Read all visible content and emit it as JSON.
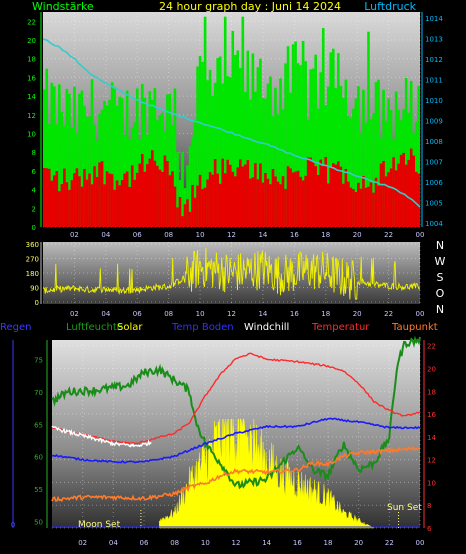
{
  "title": "24 hour graph day : Juni 14 2024",
  "colors": {
    "background": "#000000",
    "wind_gust": "#00e600",
    "wind_avg": "#e60000",
    "pressure": "#33cccc",
    "direction": "#f2f200",
    "rain": "#2222ff",
    "humidity": "#1a8c1a",
    "solar": "#ffff00",
    "temp_soil": "#1a1aff",
    "windchill": "#ffffff",
    "temperature": "#ff2a2a",
    "dewpoint": "#ff7a2a",
    "axis_left": "#00ff00",
    "axis_right": "#00bcff"
  },
  "chart_data": [
    {
      "type": "bar",
      "name_left": "Windstärke",
      "name_right": "Luftdruck",
      "x_ticks": [
        "02",
        "04",
        "06",
        "08",
        "10",
        "12",
        "14",
        "16",
        "18",
        "20",
        "22",
        "00"
      ],
      "y_left_ticks": [
        "0",
        "2",
        "4",
        "6",
        "8",
        "10",
        "12",
        "14",
        "16",
        "18",
        "20",
        "22"
      ],
      "y_left_range": [
        0,
        23
      ],
      "y_right_ticks": [
        "1004",
        "1005",
        "1006",
        "1007",
        "1008",
        "1009",
        "1010",
        "1011",
        "1012",
        "1013",
        "1014"
      ],
      "y_right_range": [
        1003.8,
        1014.3
      ],
      "series": [
        {
          "name": "gust",
          "values_by_hour": [
            13,
            12,
            11,
            12,
            12,
            11,
            12,
            13,
            12,
            5,
            16,
            14,
            17,
            15,
            15,
            14,
            16,
            14,
            15,
            15,
            13,
            12,
            12,
            12
          ]
        },
        {
          "name": "average",
          "values_by_hour": [
            6,
            5,
            5,
            6,
            6,
            5,
            6,
            7,
            6,
            1,
            5,
            6,
            6,
            6,
            6,
            5,
            6,
            6,
            6,
            6,
            5,
            5,
            6,
            7
          ]
        },
        {
          "name": "pressure",
          "x": [
            0,
            1,
            2,
            3,
            4,
            6,
            8,
            10,
            12,
            14,
            16,
            18,
            20,
            21,
            22,
            23,
            24
          ],
          "y": [
            1013.0,
            1012.6,
            1012.0,
            1011.3,
            1010.8,
            1010.0,
            1009.4,
            1008.9,
            1008.4,
            1007.9,
            1007.3,
            1006.8,
            1006.3,
            1006.0,
            1005.8,
            1005.4,
            1004.8
          ]
        }
      ]
    },
    {
      "type": "scatter",
      "x_ticks": [
        "02",
        "04",
        "06",
        "08",
        "10",
        "12",
        "14",
        "16",
        "18",
        "20",
        "22",
        "00"
      ],
      "y_ticks": [
        "0",
        "90",
        "180",
        "270",
        "360"
      ],
      "y_range": [
        0,
        360
      ],
      "compass": [
        "N",
        "W",
        "S",
        "O",
        "N"
      ],
      "direction_by_hour": [
        70,
        80,
        85,
        75,
        80,
        70,
        75,
        90,
        95,
        150,
        220,
        200,
        180,
        190,
        210,
        170,
        180,
        200,
        190,
        150,
        130,
        110,
        100,
        95
      ]
    },
    {
      "type": "line",
      "legend": [
        "Regen",
        "Luftfeuchte",
        "Solar",
        "Temp Boden",
        "Windchill",
        "Temperatur",
        "Taupunkt"
      ],
      "x_ticks": [
        "02",
        "04",
        "06",
        "08",
        "10",
        "12",
        "14",
        "16",
        "18",
        "20",
        "22",
        "00"
      ],
      "y_left_outer_ticks": [
        "0"
      ],
      "y_left_ticks": [
        "50",
        "55",
        "60",
        "65",
        "70",
        "75"
      ],
      "y_left_range": [
        49,
        78
      ],
      "y_right_ticks": [
        "6",
        "8",
        "10",
        "12",
        "14",
        "16",
        "18",
        "20",
        "22"
      ],
      "y_right_range": [
        6,
        22.5
      ],
      "annotations": [
        "Moon Set",
        "Sun Set"
      ],
      "series": [
        {
          "name": "Temperatur",
          "x": [
            0,
            2,
            4,
            5.5,
            6.5,
            8,
            9,
            10,
            11,
            12,
            13,
            14,
            15,
            16,
            17,
            18,
            19,
            20,
            21,
            22,
            23,
            24
          ],
          "y": [
            14.8,
            14.2,
            13.6,
            13.4,
            13.8,
            14.3,
            15.3,
            17.6,
            19.5,
            20.9,
            21.3,
            20.8,
            20.7,
            20.6,
            20.4,
            20.2,
            19.8,
            18.7,
            17.1,
            16.3,
            15.8,
            16.2
          ]
        },
        {
          "name": "Windchill",
          "x": [
            0,
            2,
            4,
            5.5,
            6.5
          ],
          "y": [
            14.8,
            14.1,
            13.4,
            13.2,
            13.5
          ]
        },
        {
          "name": "Temp Boden",
          "x": [
            0,
            2,
            4,
            6,
            8,
            10,
            12,
            14,
            16,
            18,
            20,
            22,
            24
          ],
          "y": [
            12.4,
            12.0,
            11.8,
            11.8,
            12.3,
            13.4,
            14.3,
            14.9,
            14.9,
            15.6,
            15.3,
            14.8,
            14.8
          ]
        },
        {
          "name": "Taupunkt",
          "x": [
            0,
            2,
            4,
            6,
            8,
            9,
            10,
            11,
            12,
            14,
            16,
            17,
            18,
            19,
            20,
            22,
            24
          ],
          "y": [
            8.5,
            8.7,
            8.7,
            8.6,
            9.0,
            9.6,
            9.9,
            10.6,
            11.0,
            10.9,
            11.1,
            11.7,
            11.6,
            12.3,
            12.6,
            12.8,
            13.0
          ]
        },
        {
          "name": "Luftfeuchte",
          "x": [
            0,
            1,
            3,
            5,
            6,
            7,
            8.5,
            9,
            9.3,
            10,
            11,
            12,
            13,
            14,
            15,
            16,
            17,
            18,
            19,
            20,
            21,
            22,
            22.5,
            23,
            24
          ],
          "y": [
            68.5,
            70.0,
            70.3,
            71.0,
            73.0,
            73.4,
            71.0,
            70.0,
            66.0,
            62.0,
            59.0,
            55.5,
            56.0,
            56.5,
            59.0,
            61.5,
            58.0,
            57.0,
            62.0,
            58.0,
            59.0,
            63.0,
            74.0,
            77.5,
            78.0
          ]
        },
        {
          "name": "Solar",
          "values_by_hour": [
            0,
            0,
            0,
            0,
            0,
            0,
            0,
            1,
            2,
            6,
            9,
            12,
            13,
            11,
            9,
            7,
            6,
            5,
            4,
            2,
            1,
            0,
            0,
            0
          ]
        },
        {
          "name": "Regen",
          "values_by_hour": [
            0,
            0,
            0,
            0,
            0,
            0,
            0,
            0,
            0,
            0,
            0,
            0,
            0,
            0,
            0,
            0,
            0,
            0,
            0,
            0,
            0,
            0,
            0,
            0
          ]
        }
      ]
    }
  ]
}
